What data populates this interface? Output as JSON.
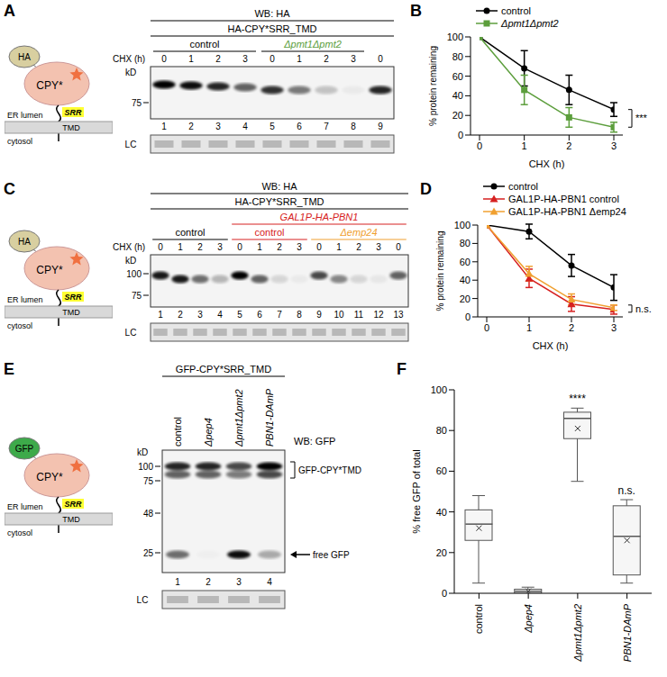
{
  "panels": [
    "A",
    "B",
    "C",
    "D",
    "E",
    "F"
  ],
  "schematics": [
    {
      "panel": "A",
      "tag": "HA",
      "protein": "CPY*",
      "srr": "SRR",
      "tmd": "TMD",
      "lumen": "ER lumen",
      "cytosol": "cytosol"
    },
    {
      "panel": "C",
      "tag": "HA",
      "protein": "CPY*",
      "srr": "SRR",
      "tmd": "TMD",
      "lumen": "ER lumen",
      "cytosol": "cytosol"
    },
    {
      "panel": "E",
      "tag": "GFP",
      "protein": "CPY*",
      "srr": "SRR",
      "tmd": "TMD",
      "lumen": "ER lumen",
      "cytosol": "cytosol"
    }
  ],
  "blots": {
    "A": {
      "wb": "WB: HA",
      "construct": "HA-CPY*SRR_TMD",
      "groups": [
        "control",
        "Δpmt1Δpmt2"
      ],
      "chx_label": "CHX (h)",
      "chx": [
        0,
        1,
        2,
        3,
        0,
        1,
        2,
        3,
        0
      ],
      "kd_label": "kD",
      "markers": [
        75
      ],
      "lanes": [
        1,
        2,
        3,
        4,
        5,
        6,
        7,
        8,
        9
      ],
      "loading": "LC"
    },
    "C": {
      "wb": "WB: HA",
      "construct": "HA-CPY*SRR_TMD",
      "induction": "GAL1P-HA-PBN1",
      "groups": [
        "control",
        "control",
        "Δemp24"
      ],
      "chx_label": "CHX (h)",
      "chx": [
        0,
        1,
        2,
        3,
        0,
        1,
        2,
        3,
        0,
        1,
        2,
        3,
        0
      ],
      "kd_label": "kD",
      "markers": [
        100,
        75
      ],
      "lanes": [
        1,
        2,
        3,
        4,
        5,
        6,
        7,
        8,
        9,
        10,
        11,
        12,
        13
      ],
      "loading": "LC"
    },
    "E": {
      "wb": "WB: GFP",
      "construct": "GFP-CPY*SRR_TMD",
      "strains": [
        "control",
        "Δpep4",
        "Δpmt1Δpmt2",
        "PBN1-DAmP"
      ],
      "kd_label": "kD",
      "markers": [
        100,
        75,
        48,
        25
      ],
      "bands": [
        "GFP-CPY*TMD",
        "free GFP"
      ],
      "lanes": [
        1,
        2,
        3,
        4
      ],
      "loading": "LC"
    }
  },
  "chart_data": [
    {
      "type": "line",
      "x_label": "CHX (h)",
      "y_label": "% protein remaining",
      "x": [
        0,
        1,
        2,
        3
      ],
      "xlim": [
        0,
        3
      ],
      "xticks": [
        0,
        1,
        2,
        3
      ],
      "ylim": [
        0,
        100
      ],
      "yticks": [
        0,
        20,
        40,
        60,
        80,
        100
      ],
      "legend": "top",
      "series": [
        {
          "name": "control",
          "color": "#000000",
          "marker": "circle",
          "values": [
            100,
            68,
            46,
            26
          ],
          "errors": [
            0,
            18,
            15,
            7
          ]
        },
        {
          "name": "Δpmt1Δpmt2",
          "color": "#5c9e3c",
          "marker": "square",
          "values": [
            100,
            46,
            18,
            8
          ],
          "errors": [
            0,
            15,
            10,
            5
          ]
        }
      ],
      "annotation": "***"
    },
    {
      "type": "line",
      "x_label": "CHX (h)",
      "y_label": "% protein remaining",
      "x": [
        0,
        1,
        2,
        3
      ],
      "xlim": [
        0,
        3
      ],
      "xticks": [
        0,
        1,
        2,
        3
      ],
      "ylim": [
        0,
        100
      ],
      "yticks": [
        0,
        20,
        40,
        60,
        80,
        100
      ],
      "legend": "top",
      "series": [
        {
          "name": "control",
          "color": "#000000",
          "marker": "circle",
          "values": [
            100,
            93,
            56,
            32
          ],
          "errors": [
            0,
            8,
            12,
            14
          ]
        },
        {
          "name": "GAL1P-HA-PBN1 control",
          "color": "#d62020",
          "marker": "triangle",
          "values": [
            100,
            42,
            14,
            8
          ],
          "errors": [
            0,
            10,
            8,
            5
          ]
        },
        {
          "name": "GAL1P-HA-PBN1 Δemp24",
          "color": "#f0a030",
          "marker": "triangle",
          "values": [
            100,
            47,
            19,
            10
          ],
          "errors": [
            0,
            8,
            6,
            3
          ]
        }
      ],
      "annotation": "n.s."
    },
    {
      "type": "box",
      "y_label": "% free GFP of total",
      "categories": [
        "control",
        "Δpep4",
        "Δpmt1Δpmt2",
        "PBN1-DAmP"
      ],
      "ylim": [
        0,
        100
      ],
      "yticks": [
        0,
        20,
        40,
        60,
        80,
        100
      ],
      "color": "#555555",
      "boxes": [
        {
          "min": 5,
          "q1": 26,
          "median": 34,
          "q3": 41,
          "max": 48,
          "mean": 32
        },
        {
          "min": 0,
          "q1": 0,
          "median": 1,
          "q3": 2,
          "max": 3,
          "mean": 1
        },
        {
          "min": 55,
          "q1": 76,
          "median": 86,
          "q3": 89,
          "max": 91,
          "mean": 81
        },
        {
          "min": 5,
          "q1": 9,
          "median": 28,
          "q3": 43,
          "max": 46,
          "mean": 26
        }
      ],
      "annotations": [
        null,
        null,
        "****",
        "n.s."
      ]
    }
  ]
}
